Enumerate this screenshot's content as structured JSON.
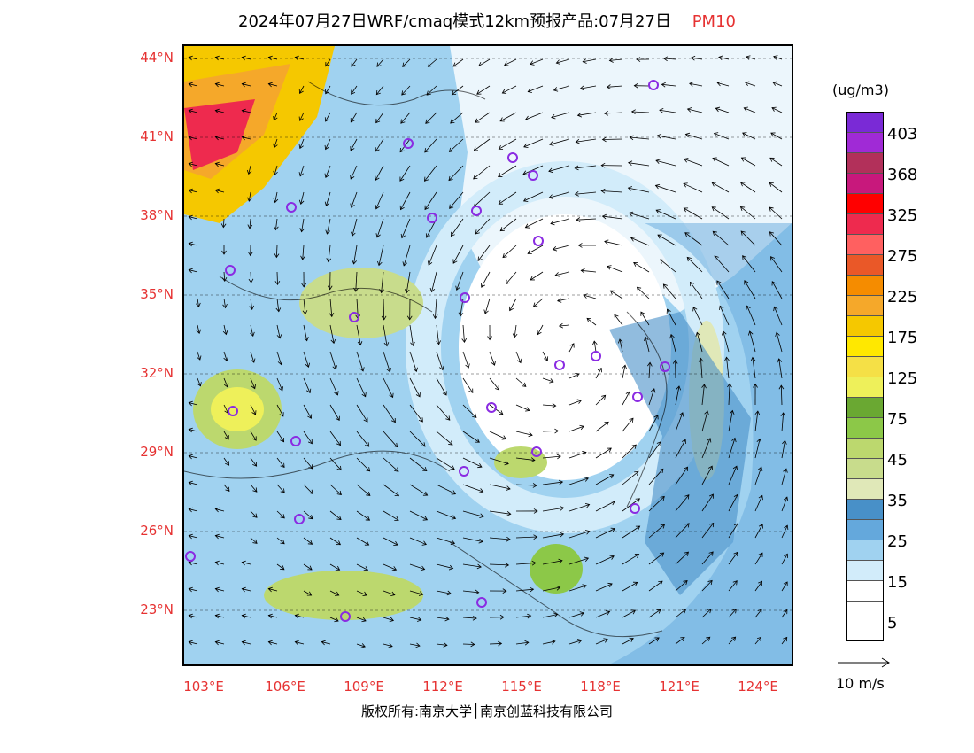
{
  "title": "2024年07月27日WRF/cmaq模式12km预报产品:07月27日",
  "title_species": "PM10",
  "footer": "版权所有:南京大学│南京创蓝科技有限公司",
  "legend": {
    "unit": "(ug/m3)",
    "labels": [
      "403",
      "368",
      "325",
      "275",
      "225",
      "175",
      "125",
      "75",
      "45",
      "35",
      "25",
      "15",
      "5"
    ],
    "colors": [
      "#7a2ad6",
      "#a02ad6",
      "#b2305a",
      "#c8187c",
      "#ff0000",
      "#ee2a4e",
      "#ff6060",
      "#ea5828",
      "#f58c00",
      "#f5a82a",
      "#f5c800",
      "#ffe800",
      "#f5e046",
      "#eef05a",
      "#6aa832",
      "#8cc848",
      "#bcd86e",
      "#c8dc8c",
      "#e0e8b8",
      "#4890c8",
      "#64a8dc",
      "#a0d2f0",
      "#d2ecfa",
      "#ffffff"
    ],
    "vector_label": "10 m/s"
  },
  "lat_labels": [
    "44°N",
    "41°N",
    "38°N",
    "35°N",
    "32°N",
    "29°N",
    "26°N",
    "23°N"
  ],
  "lon_labels": [
    "103°E",
    "106°E",
    "109°E",
    "112°E",
    "115°E",
    "118°E",
    "121°E",
    "124°E"
  ],
  "icons": {
    "station": "station-circle-icon"
  }
}
